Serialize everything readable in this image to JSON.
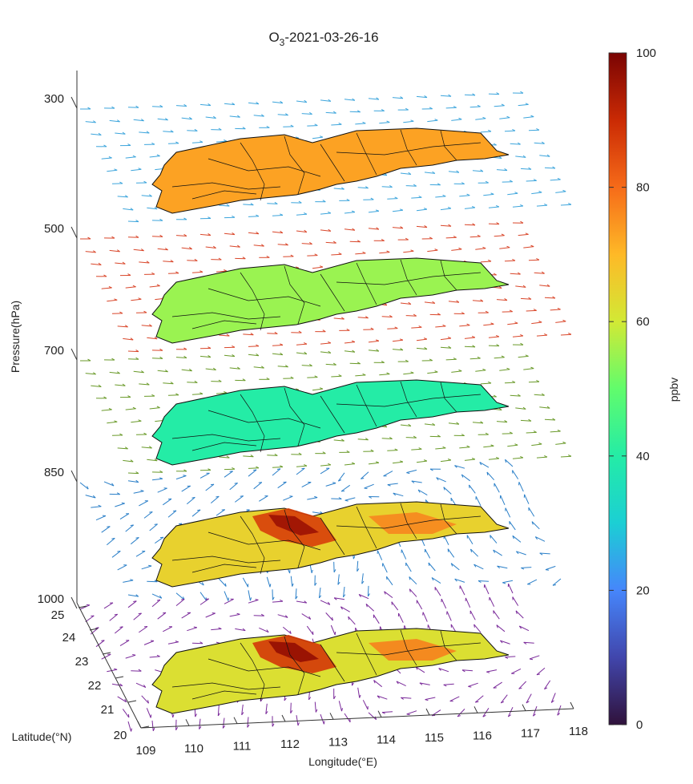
{
  "chart_data": {
    "type": "heatmap",
    "title": {
      "species": "O",
      "subscript": "3",
      "timestamp": "-2021-03-26-16"
    },
    "zlabel": "Pressure(hPa)",
    "xlabel": "Longitude(°E)",
    "ylabel": "Latitude(°N)",
    "pressure_ticks": [
      "300",
      "500",
      "700",
      "850",
      "1000"
    ],
    "longitude_ticks": [
      "109",
      "110",
      "111",
      "112",
      "113",
      "114",
      "115",
      "116",
      "117",
      "118"
    ],
    "latitude_ticks": [
      "20",
      "21",
      "22",
      "23",
      "24",
      "25"
    ],
    "colorbar": {
      "label": "ppbv",
      "min": 0,
      "max": 100,
      "ticks": [
        "0",
        "20",
        "40",
        "60",
        "80",
        "100"
      ],
      "colormap": "turbo"
    },
    "layers": [
      {
        "pressure": 300,
        "mean_o3_ppbv": 73,
        "wind_color": "#3da5dc"
      },
      {
        "pressure": 500,
        "mean_o3_ppbv": 55,
        "wind_color": "#d9472b"
      },
      {
        "pressure": 700,
        "mean_o3_ppbv": 40,
        "wind_color": "#6a9a2a"
      },
      {
        "pressure": 850,
        "mean_o3_ppbv": 65,
        "wind_color": "#2a7fc8",
        "hotspot_ppbv": 95
      },
      {
        "pressure": 1000,
        "mean_o3_ppbv": 62,
        "wind_color": "#7a2a9a",
        "hotspot_ppbv": 96
      }
    ]
  }
}
